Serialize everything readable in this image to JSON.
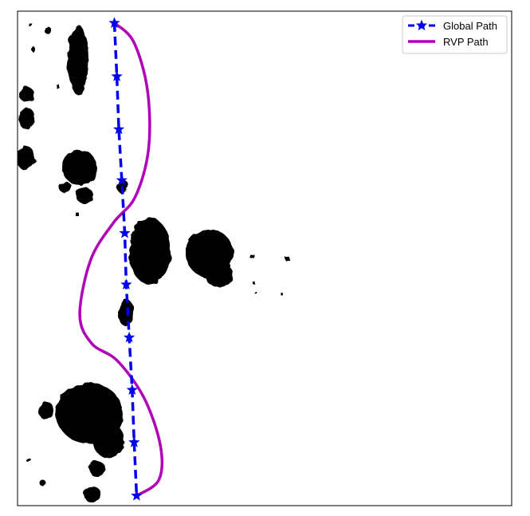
{
  "chart_data": {
    "type": "line",
    "title": "",
    "xlabel": "",
    "ylabel": "",
    "xlim": [
      0,
      100
    ],
    "ylim": [
      0,
      100
    ],
    "grid": false,
    "axis_ticks": false,
    "legend": {
      "position": "top-right"
    },
    "background": "occupancy-map",
    "colors": {
      "global": "#0000ee",
      "rvp": "#b000b8",
      "obstacle": "#000000"
    },
    "series": [
      {
        "name": "Global Path",
        "style": "dashed",
        "marker": "star",
        "x": [
          19.6,
          20.1,
          20.5,
          21.1,
          21.7,
          22.0,
          22.6,
          23.2,
          23.6,
          24.1
        ],
        "y": [
          97.6,
          86.8,
          76.1,
          65.8,
          55.1,
          44.7,
          34.0,
          23.4,
          12.8,
          2.0
        ]
      },
      {
        "name": "RVP Path",
        "style": "solid",
        "x": [
          19.6,
          23.5,
          26.3,
          26.5,
          23.8,
          19.4,
          14.8,
          12.6,
          15.0,
          20.2,
          25.6,
          28.9,
          28.6,
          24.1
        ],
        "y": [
          97.6,
          93.8,
          84.0,
          72.0,
          62.4,
          57.2,
          49.7,
          38.6,
          32.8,
          29.3,
          21.8,
          12.2,
          5.2,
          2.0
        ]
      }
    ]
  }
}
